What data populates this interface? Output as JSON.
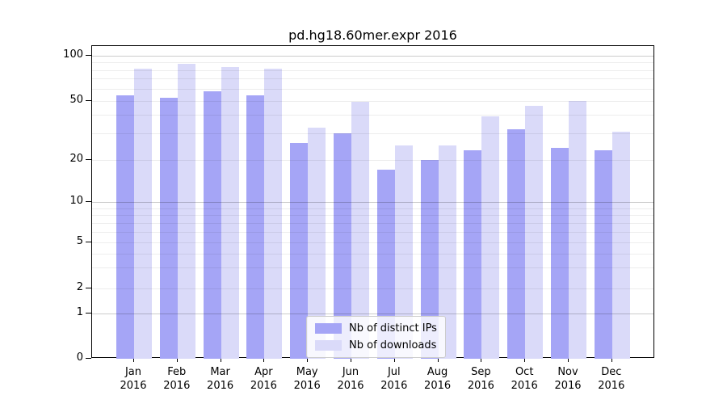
{
  "chart_data": {
    "type": "bar",
    "title": "pd.hg18.60mer.expr 2016",
    "year": "2016",
    "months": [
      "Jan",
      "Feb",
      "Mar",
      "Apr",
      "May",
      "Jun",
      "Jul",
      "Aug",
      "Sep",
      "Oct",
      "Nov",
      "Dec"
    ],
    "categories": [
      "Jan 2016",
      "Feb 2016",
      "Mar 2016",
      "Apr 2016",
      "May 2016",
      "Jun 2016",
      "Jul 2016",
      "Aug 2016",
      "Sep 2016",
      "Oct 2016",
      "Nov 2016",
      "Dec 2016"
    ],
    "series": [
      {
        "name": "Nb of distinct IPs",
        "color": "#a5a5f6",
        "values": [
          54,
          52,
          58,
          54,
          26,
          30,
          17,
          20,
          23,
          32,
          24,
          23
        ]
      },
      {
        "name": "Nb of downloads",
        "color": "#dadaf9",
        "values": [
          82,
          88,
          84,
          82,
          33,
          49,
          25,
          25,
          39,
          46,
          50,
          31
        ]
      }
    ],
    "yticks": [
      0,
      1,
      2,
      5,
      10,
      20,
      50,
      100
    ],
    "yscale": "log-like (symlog, linear segment 0-1)",
    "ylim": [
      0,
      115
    ],
    "xlabel": "",
    "ylabel": "",
    "grid": "horizontal, both major and minor, drawn over bars",
    "legend_position": "lower center"
  }
}
